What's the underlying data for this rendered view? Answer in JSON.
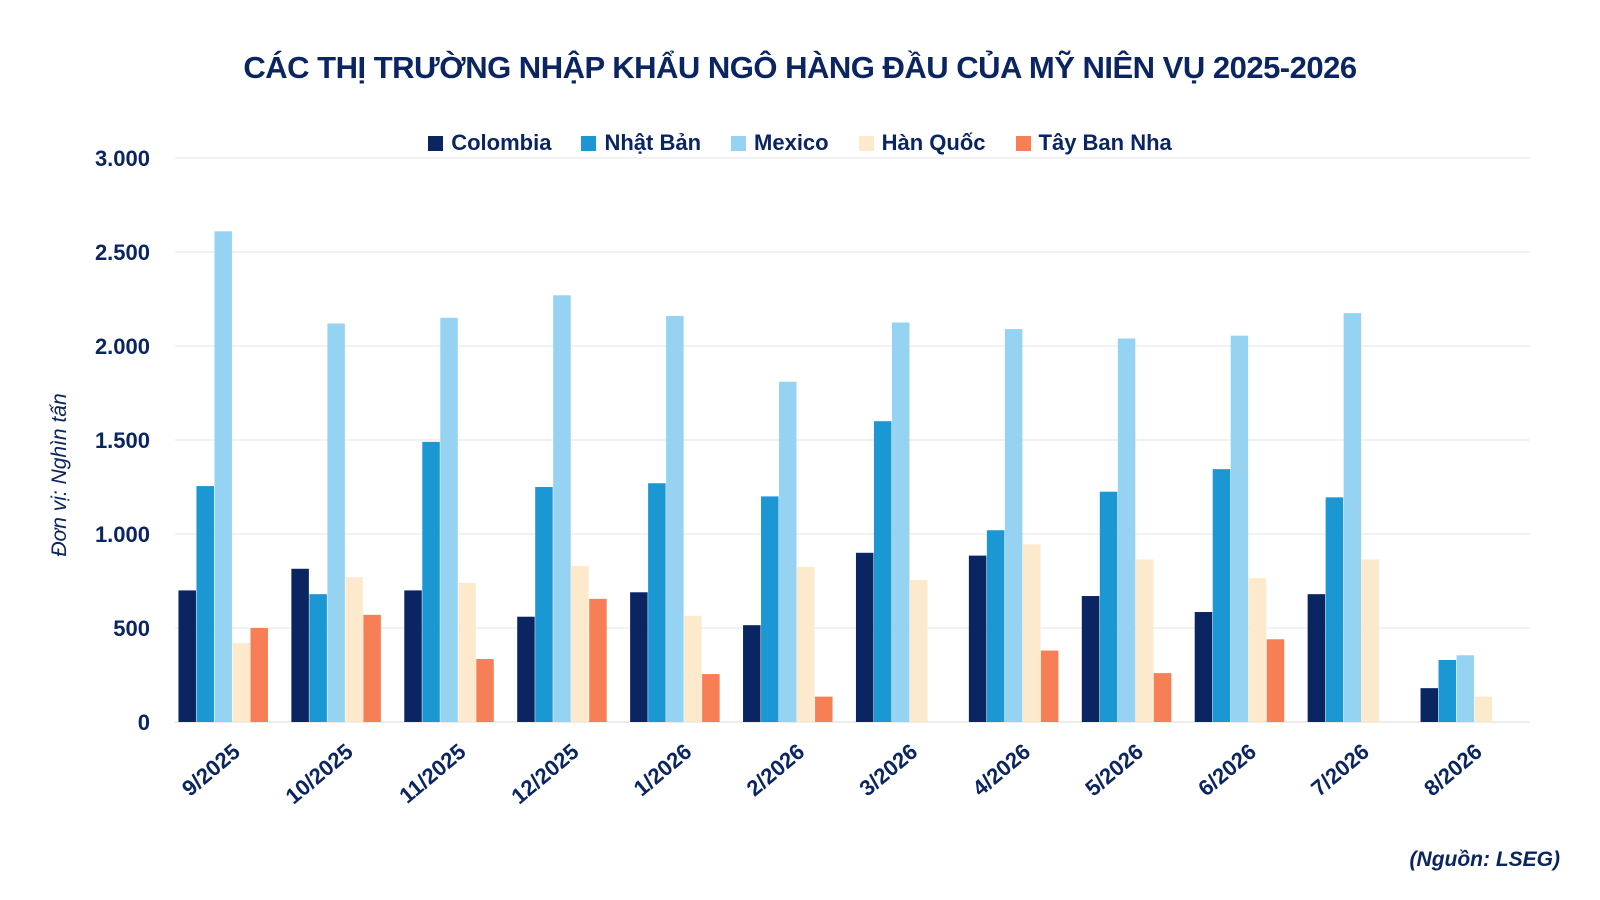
{
  "chart_data": {
    "type": "bar",
    "title": "CÁC THỊ TRƯỜNG NHẬP KHẨU NGÔ HÀNG ĐẦU CỦA MỸ NIÊN VỤ 2025-2026",
    "ylabel": "Đơn vị: Nghìn tấn",
    "xlabel": "",
    "source": "(Nguồn: LSEG)",
    "ylim": [
      0,
      3000
    ],
    "yticks": [
      {
        "value": 0,
        "label": "0"
      },
      {
        "value": 500,
        "label": "500"
      },
      {
        "value": 1000,
        "label": "1.000"
      },
      {
        "value": 1500,
        "label": "1.500"
      },
      {
        "value": 2000,
        "label": "2.000"
      },
      {
        "value": 2500,
        "label": "2.500"
      },
      {
        "value": 3000,
        "label": "3.000"
      }
    ],
    "grid": true,
    "legend_position": "top",
    "categories": [
      "9/2025",
      "10/2025",
      "11/2025",
      "12/2025",
      "1/2026",
      "2/2026",
      "3/2026",
      "4/2026",
      "5/2026",
      "6/2026",
      "7/2026",
      "8/2026"
    ],
    "series": [
      {
        "name": "Colombia",
        "color": "#0a2561",
        "values": [
          700,
          815,
          700,
          560,
          690,
          515,
          900,
          885,
          670,
          585,
          680,
          180
        ]
      },
      {
        "name": "Nhật Bản",
        "color": "#1b97d4",
        "values": [
          1255,
          680,
          1490,
          1250,
          1270,
          1200,
          1600,
          1020,
          1225,
          1345,
          1195,
          330
        ]
      },
      {
        "name": "Mexico",
        "color": "#96d3f3",
        "values": [
          2610,
          2120,
          2150,
          2270,
          2160,
          1810,
          2125,
          2090,
          2040,
          2055,
          2175,
          355
        ]
      },
      {
        "name": "Hàn Quốc",
        "color": "#fde9cc",
        "values": [
          420,
          770,
          740,
          830,
          565,
          825,
          755,
          945,
          865,
          765,
          865,
          135
        ]
      },
      {
        "name": "Tây Ban Nha",
        "color": "#f77f55",
        "values": [
          500,
          570,
          335,
          655,
          255,
          135,
          0,
          380,
          260,
          440,
          0,
          0
        ]
      }
    ]
  }
}
